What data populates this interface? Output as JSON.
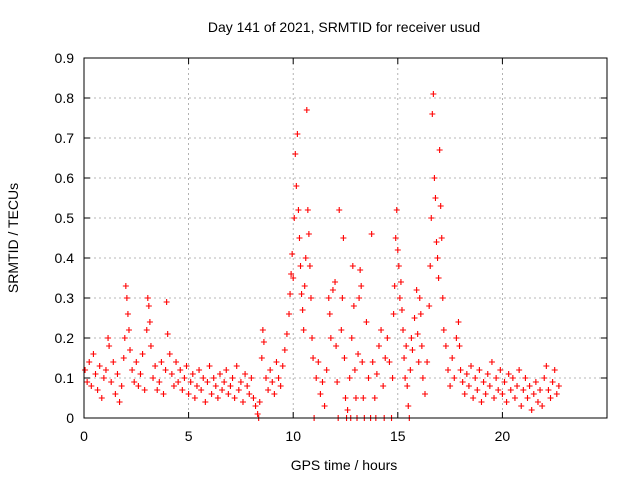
{
  "chart_data": {
    "type": "scatter",
    "title": "Day 141 of 2021, SRMTID for receiver usud",
    "xlabel": "GPS time / hours",
    "ylabel": "SRMTID / TECUs",
    "xlim": [
      0,
      25
    ],
    "ylim": [
      0,
      0.9
    ],
    "xticks": [
      0,
      5,
      10,
      15,
      20
    ],
    "xtick_labels": [
      "0",
      "5",
      "10",
      "15",
      "20"
    ],
    "yticks": [
      0,
      0.1,
      0.2,
      0.3,
      0.4,
      0.5,
      0.6,
      0.7,
      0.8,
      0.9
    ],
    "ytick_labels": [
      "0",
      "0.1",
      "0.2",
      "0.3",
      "0.4",
      "0.5",
      "0.6",
      "0.7",
      "0.8",
      "0.9"
    ],
    "grid": true,
    "marker": "+",
    "color": "#ff0000",
    "series": [
      {
        "name": "SRMTID",
        "points": [
          [
            0.05,
            0.12
          ],
          [
            0.15,
            0.09
          ],
          [
            0.25,
            0.14
          ],
          [
            0.35,
            0.08
          ],
          [
            0.45,
            0.16
          ],
          [
            0.55,
            0.11
          ],
          [
            0.65,
            0.07
          ],
          [
            0.75,
            0.13
          ],
          [
            0.85,
            0.05
          ],
          [
            0.95,
            0.1
          ],
          [
            1.05,
            0.12
          ],
          [
            1.15,
            0.2
          ],
          [
            1.2,
            0.18
          ],
          [
            1.3,
            0.09
          ],
          [
            1.4,
            0.14
          ],
          [
            1.5,
            0.06
          ],
          [
            1.6,
            0.11
          ],
          [
            1.7,
            0.04
          ],
          [
            1.8,
            0.08
          ],
          [
            1.9,
            0.15
          ],
          [
            1.95,
            0.2
          ],
          [
            2.0,
            0.33
          ],
          [
            2.05,
            0.3
          ],
          [
            2.1,
            0.26
          ],
          [
            2.15,
            0.22
          ],
          [
            2.2,
            0.17
          ],
          [
            2.3,
            0.12
          ],
          [
            2.4,
            0.09
          ],
          [
            2.5,
            0.14
          ],
          [
            2.6,
            0.08
          ],
          [
            2.7,
            0.11
          ],
          [
            2.8,
            0.16
          ],
          [
            2.9,
            0.07
          ],
          [
            3.0,
            0.22
          ],
          [
            3.05,
            0.3
          ],
          [
            3.1,
            0.28
          ],
          [
            3.15,
            0.24
          ],
          [
            3.2,
            0.18
          ],
          [
            3.3,
            0.1
          ],
          [
            3.4,
            0.13
          ],
          [
            3.5,
            0.07
          ],
          [
            3.6,
            0.09
          ],
          [
            3.7,
            0.14
          ],
          [
            3.8,
            0.06
          ],
          [
            3.9,
            0.12
          ],
          [
            3.95,
            0.29
          ],
          [
            4.0,
            0.21
          ],
          [
            4.1,
            0.16
          ],
          [
            4.2,
            0.11
          ],
          [
            4.3,
            0.08
          ],
          [
            4.4,
            0.14
          ],
          [
            4.5,
            0.09
          ],
          [
            4.6,
            0.12
          ],
          [
            4.7,
            0.07
          ],
          [
            4.8,
            0.1
          ],
          [
            4.9,
            0.13
          ],
          [
            5.0,
            0.06
          ],
          [
            5.1,
            0.09
          ],
          [
            5.2,
            0.11
          ],
          [
            5.3,
            0.05
          ],
          [
            5.4,
            0.08
          ],
          [
            5.5,
            0.12
          ],
          [
            5.6,
            0.07
          ],
          [
            5.7,
            0.1
          ],
          [
            5.8,
            0.04
          ],
          [
            5.9,
            0.09
          ],
          [
            6.0,
            0.13
          ],
          [
            6.1,
            0.06
          ],
          [
            6.2,
            0.1
          ],
          [
            6.3,
            0.08
          ],
          [
            6.4,
            0.05
          ],
          [
            6.5,
            0.11
          ],
          [
            6.6,
            0.07
          ],
          [
            6.7,
            0.09
          ],
          [
            6.8,
            0.12
          ],
          [
            6.9,
            0.06
          ],
          [
            7.0,
            0.08
          ],
          [
            7.1,
            0.1
          ],
          [
            7.2,
            0.05
          ],
          [
            7.3,
            0.13
          ],
          [
            7.4,
            0.07
          ],
          [
            7.5,
            0.09
          ],
          [
            7.6,
            0.04
          ],
          [
            7.7,
            0.11
          ],
          [
            7.8,
            0.08
          ],
          [
            7.9,
            0.06
          ],
          [
            8.0,
            0.1
          ],
          [
            8.1,
            0.05
          ],
          [
            8.2,
            0.03
          ],
          [
            8.3,
            0.01
          ],
          [
            8.35,
            0.0
          ],
          [
            8.4,
            0.04
          ],
          [
            8.5,
            0.15
          ],
          [
            8.55,
            0.22
          ],
          [
            8.6,
            0.19
          ],
          [
            8.7,
            0.1
          ],
          [
            8.8,
            0.07
          ],
          [
            8.9,
            0.12
          ],
          [
            9.0,
            0.09
          ],
          [
            9.1,
            0.06
          ],
          [
            9.2,
            0.14
          ],
          [
            9.3,
            0.1
          ],
          [
            9.4,
            0.08
          ],
          [
            9.5,
            0.13
          ],
          [
            9.6,
            0.17
          ],
          [
            9.7,
            0.21
          ],
          [
            9.8,
            0.26
          ],
          [
            9.85,
            0.31
          ],
          [
            9.9,
            0.36
          ],
          [
            9.95,
            0.41
          ],
          [
            10.0,
            0.35
          ],
          [
            10.05,
            0.5
          ],
          [
            10.1,
            0.66
          ],
          [
            10.15,
            0.58
          ],
          [
            10.2,
            0.71
          ],
          [
            10.25,
            0.52
          ],
          [
            10.3,
            0.45
          ],
          [
            10.35,
            0.38
          ],
          [
            10.4,
            0.31
          ],
          [
            10.45,
            0.27
          ],
          [
            10.5,
            0.22
          ],
          [
            10.55,
            0.33
          ],
          [
            10.6,
            0.4
          ],
          [
            10.65,
            0.77
          ],
          [
            10.7,
            0.52
          ],
          [
            10.75,
            0.46
          ],
          [
            10.8,
            0.38
          ],
          [
            10.85,
            0.3
          ],
          [
            10.9,
            0.2
          ],
          [
            10.95,
            0.15
          ],
          [
            11.0,
            0.0
          ],
          [
            11.1,
            0.1
          ],
          [
            11.2,
            0.14
          ],
          [
            11.3,
            0.06
          ],
          [
            11.4,
            0.09
          ],
          [
            11.5,
            0.03
          ],
          [
            11.6,
            0.12
          ],
          [
            11.7,
            0.3
          ],
          [
            11.75,
            0.26
          ],
          [
            11.8,
            0.2
          ],
          [
            11.9,
            0.32
          ],
          [
            12.0,
            0.34
          ],
          [
            12.05,
            0.18
          ],
          [
            12.1,
            0.09
          ],
          [
            12.15,
            0.0
          ],
          [
            12.2,
            0.52
          ],
          [
            12.3,
            0.22
          ],
          [
            12.35,
            0.3
          ],
          [
            12.4,
            0.45
          ],
          [
            12.45,
            0.15
          ],
          [
            12.5,
            0.05
          ],
          [
            12.55,
            0.0
          ],
          [
            12.6,
            0.02
          ],
          [
            12.7,
            0.1
          ],
          [
            12.75,
            0.0
          ],
          [
            12.8,
            0.2
          ],
          [
            12.85,
            0.38
          ],
          [
            12.9,
            0.28
          ],
          [
            12.95,
            0.12
          ],
          [
            13.0,
            0.05
          ],
          [
            13.05,
            0.0
          ],
          [
            13.1,
            0.16
          ],
          [
            13.15,
            0.3
          ],
          [
            13.2,
            0.37
          ],
          [
            13.25,
            0.33
          ],
          [
            13.3,
            0.14
          ],
          [
            13.35,
            0.05
          ],
          [
            13.4,
            0.0
          ],
          [
            13.5,
            0.24
          ],
          [
            13.6,
            0.1
          ],
          [
            13.7,
            0.0
          ],
          [
            13.75,
            0.46
          ],
          [
            13.8,
            0.14
          ],
          [
            13.9,
            0.05
          ],
          [
            13.95,
            0.0
          ],
          [
            14.0,
            0.11
          ],
          [
            14.1,
            0.18
          ],
          [
            14.2,
            0.22
          ],
          [
            14.3,
            0.08
          ],
          [
            14.35,
            0.0
          ],
          [
            14.4,
            0.15
          ],
          [
            14.5,
            0.2
          ],
          [
            14.6,
            0.14
          ],
          [
            14.7,
            0.0
          ],
          [
            14.75,
            0.1
          ],
          [
            14.8,
            0.26
          ],
          [
            14.85,
            0.33
          ],
          [
            14.9,
            0.45
          ],
          [
            14.95,
            0.52
          ],
          [
            15.0,
            0.42
          ],
          [
            15.05,
            0.38
          ],
          [
            15.1,
            0.3
          ],
          [
            15.15,
            0.34
          ],
          [
            15.2,
            0.27
          ],
          [
            15.25,
            0.22
          ],
          [
            15.3,
            0.15
          ],
          [
            15.35,
            0.1
          ],
          [
            15.4,
            0.18
          ],
          [
            15.45,
            0.08
          ],
          [
            15.5,
            0.03
          ],
          [
            15.55,
            0.0
          ],
          [
            15.6,
            0.12
          ],
          [
            15.65,
            0.2
          ],
          [
            15.7,
            0.17
          ],
          [
            15.8,
            0.25
          ],
          [
            15.9,
            0.32
          ],
          [
            15.95,
            0.21
          ],
          [
            16.0,
            0.14
          ],
          [
            16.05,
            0.3
          ],
          [
            16.1,
            0.26
          ],
          [
            16.15,
            0.18
          ],
          [
            16.2,
            0.1
          ],
          [
            16.3,
            0.06
          ],
          [
            16.4,
            0.14
          ],
          [
            16.5,
            0.28
          ],
          [
            16.55,
            0.38
          ],
          [
            16.6,
            0.5
          ],
          [
            16.65,
            0.76
          ],
          [
            16.7,
            0.81
          ],
          [
            16.75,
            0.6
          ],
          [
            16.8,
            0.55
          ],
          [
            16.85,
            0.44
          ],
          [
            16.9,
            0.4
          ],
          [
            16.95,
            0.35
          ],
          [
            17.0,
            0.67
          ],
          [
            17.05,
            0.53
          ],
          [
            17.1,
            0.45
          ],
          [
            17.15,
            0.3
          ],
          [
            17.2,
            0.22
          ],
          [
            17.3,
            0.18
          ],
          [
            17.4,
            0.12
          ],
          [
            17.5,
            0.08
          ],
          [
            17.6,
            0.15
          ],
          [
            17.7,
            0.1
          ],
          [
            17.8,
            0.2
          ],
          [
            17.9,
            0.24
          ],
          [
            17.95,
            0.18
          ],
          [
            18.0,
            0.12
          ],
          [
            18.1,
            0.09
          ],
          [
            18.2,
            0.06
          ],
          [
            18.3,
            0.11
          ],
          [
            18.4,
            0.08
          ],
          [
            18.5,
            0.13
          ],
          [
            18.6,
            0.05
          ],
          [
            18.7,
            0.1
          ],
          [
            18.8,
            0.07
          ],
          [
            18.9,
            0.12
          ],
          [
            19.0,
            0.04
          ],
          [
            19.1,
            0.09
          ],
          [
            19.2,
            0.06
          ],
          [
            19.3,
            0.11
          ],
          [
            19.4,
            0.08
          ],
          [
            19.5,
            0.14
          ],
          [
            19.6,
            0.05
          ],
          [
            19.7,
            0.1
          ],
          [
            19.8,
            0.07
          ],
          [
            19.9,
            0.12
          ],
          [
            20.0,
            0.06
          ],
          [
            20.1,
            0.09
          ],
          [
            20.2,
            0.04
          ],
          [
            20.3,
            0.11
          ],
          [
            20.4,
            0.07
          ],
          [
            20.5,
            0.1
          ],
          [
            20.6,
            0.05
          ],
          [
            20.7,
            0.08
          ],
          [
            20.8,
            0.12
          ],
          [
            20.9,
            0.03
          ],
          [
            21.0,
            0.07
          ],
          [
            21.1,
            0.1
          ],
          [
            21.2,
            0.05
          ],
          [
            21.3,
            0.08
          ],
          [
            21.4,
            0.02
          ],
          [
            21.5,
            0.06
          ],
          [
            21.6,
            0.09
          ],
          [
            21.7,
            0.04
          ],
          [
            21.8,
            0.07
          ],
          [
            21.9,
            0.03
          ],
          [
            22.0,
            0.1
          ],
          [
            22.1,
            0.13
          ],
          [
            22.2,
            0.07
          ],
          [
            22.3,
            0.05
          ],
          [
            22.4,
            0.09
          ],
          [
            22.5,
            0.12
          ],
          [
            22.6,
            0.06
          ],
          [
            22.7,
            0.08
          ]
        ]
      }
    ]
  }
}
